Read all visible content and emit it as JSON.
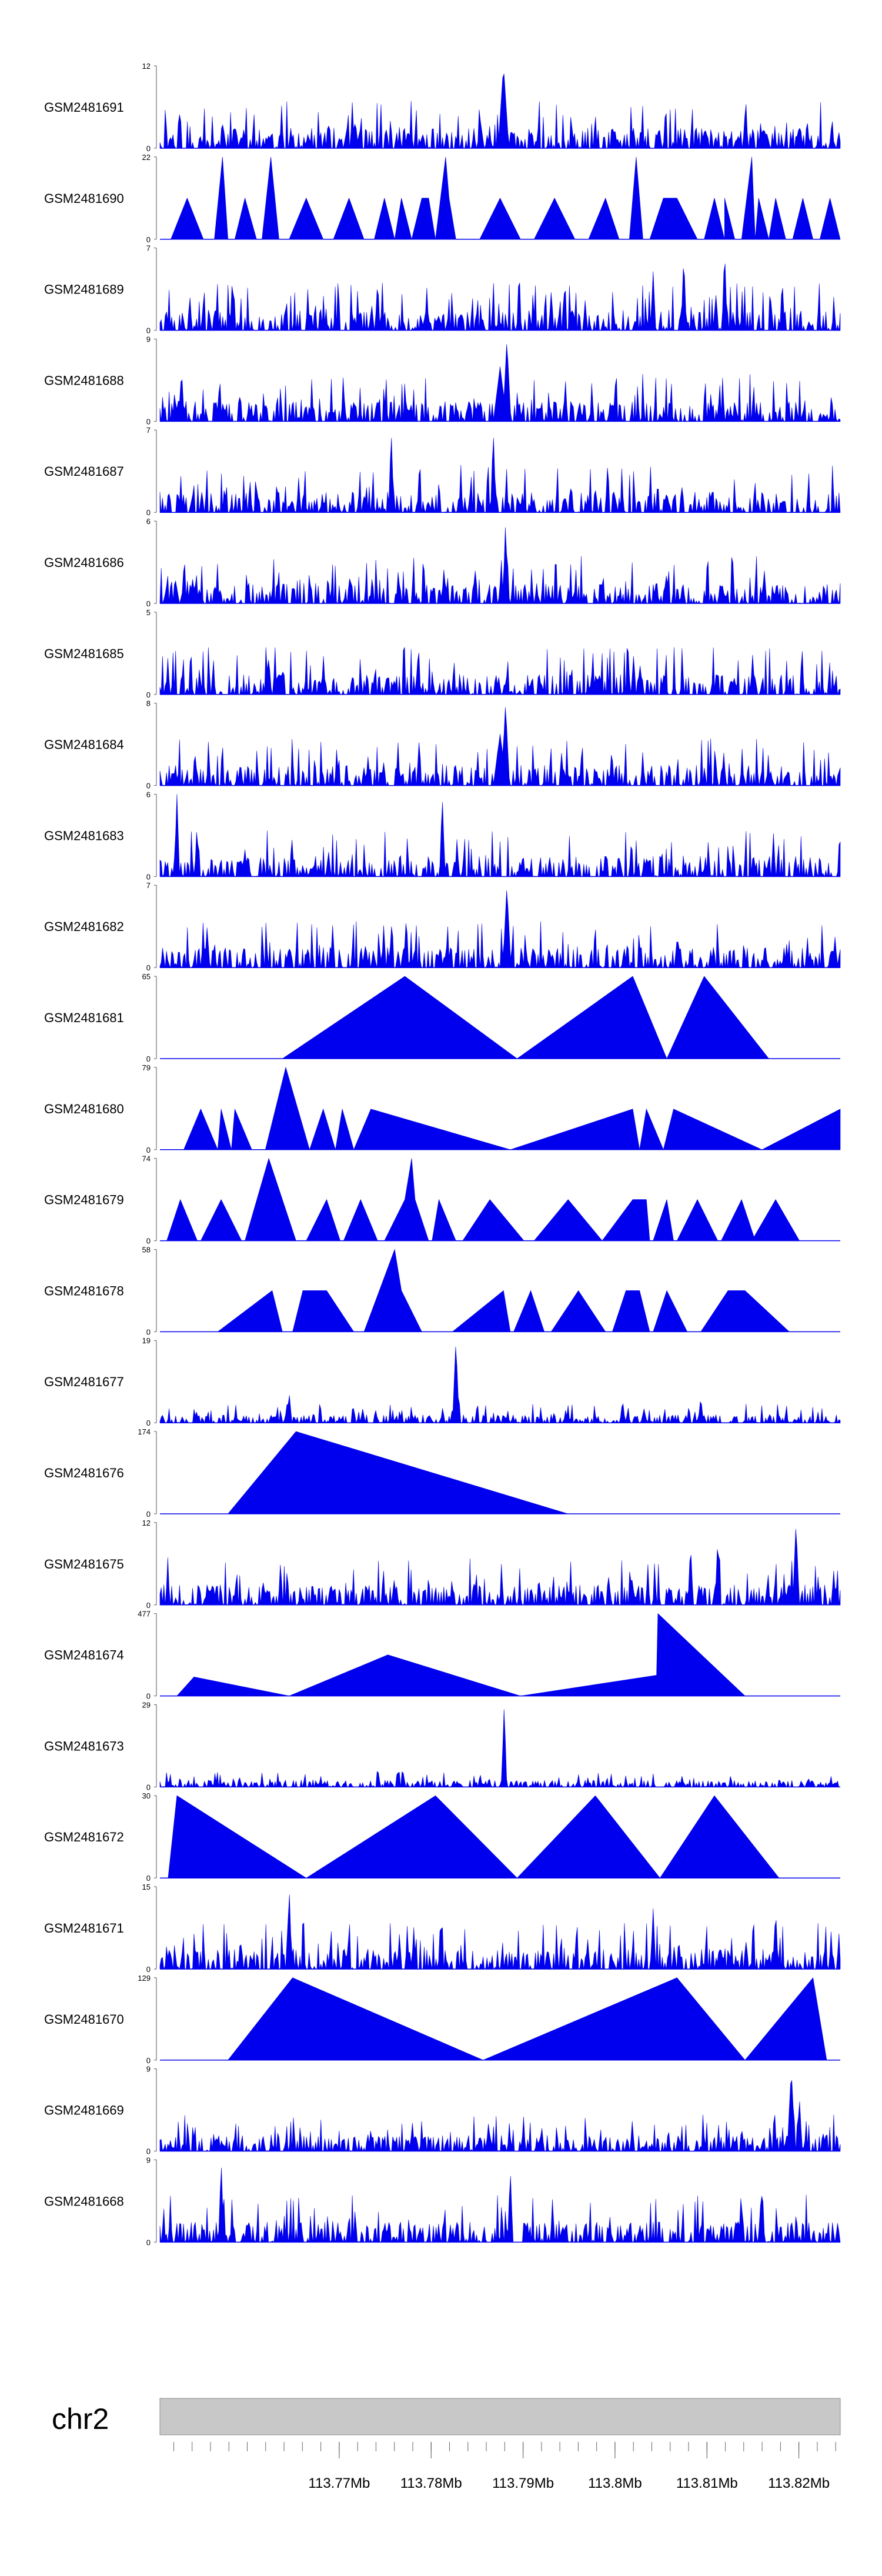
{
  "chart_data": {
    "type": "area",
    "title": "",
    "fill_color": "#0000EE",
    "chromosome": "chr2",
    "x_range_mb": [
      113.7505,
      113.8245
    ],
    "position_ticks": [
      "113.77Mb",
      "113.78Mb",
      "113.79Mb",
      "113.8Mb",
      "113.81Mb",
      "113.82Mb"
    ],
    "position_tick_values_mb": [
      113.77,
      113.78,
      113.79,
      113.8,
      113.81,
      113.82
    ],
    "ideogram_color": "#C8C8C8",
    "tracks": [
      {
        "name": "GSM2481691",
        "ymax": "12",
        "ymin": "0",
        "style": "dense",
        "max": 12,
        "peaks": [
          [
            0.505,
            12,
            0.008
          ]
        ],
        "seed": 11
      },
      {
        "name": "GSM2481690",
        "ymax": "22",
        "ymin": "0",
        "style": "tri",
        "max": 22,
        "points": [
          [
            0.0,
            0
          ],
          [
            0.016,
            0
          ],
          [
            0.04,
            11
          ],
          [
            0.064,
            0
          ],
          [
            0.08,
            0
          ],
          [
            0.092,
            22
          ],
          [
            0.1,
            0
          ],
          [
            0.11,
            0
          ],
          [
            0.125,
            11
          ],
          [
            0.142,
            0
          ],
          [
            0.15,
            0
          ],
          [
            0.163,
            22
          ],
          [
            0.175,
            0
          ],
          [
            0.19,
            0
          ],
          [
            0.215,
            11
          ],
          [
            0.24,
            0
          ],
          [
            0.255,
            0
          ],
          [
            0.278,
            11
          ],
          [
            0.3,
            0
          ],
          [
            0.315,
            0
          ],
          [
            0.33,
            11
          ],
          [
            0.345,
            0
          ],
          [
            0.355,
            11
          ],
          [
            0.37,
            0
          ],
          [
            0.385,
            11
          ],
          [
            0.395,
            11
          ],
          [
            0.405,
            0
          ],
          [
            0.42,
            22
          ],
          [
            0.425,
            11
          ],
          [
            0.435,
            0
          ],
          [
            0.47,
            0
          ],
          [
            0.5,
            11
          ],
          [
            0.53,
            0
          ],
          [
            0.55,
            0
          ],
          [
            0.58,
            11
          ],
          [
            0.61,
            0
          ],
          [
            0.63,
            0
          ],
          [
            0.655,
            11
          ],
          [
            0.675,
            0
          ],
          [
            0.69,
            0
          ],
          [
            0.7,
            22
          ],
          [
            0.71,
            0
          ],
          [
            0.72,
            0
          ],
          [
            0.74,
            11
          ],
          [
            0.76,
            11
          ],
          [
            0.79,
            0
          ],
          [
            0.8,
            0
          ],
          [
            0.815,
            11
          ],
          [
            0.83,
            0
          ],
          [
            0.83,
            11
          ],
          [
            0.845,
            0
          ],
          [
            0.855,
            0
          ],
          [
            0.87,
            22
          ],
          [
            0.875,
            0
          ],
          [
            0.88,
            11
          ],
          [
            0.895,
            0
          ],
          [
            0.905,
            11
          ],
          [
            0.92,
            0
          ],
          [
            0.93,
            0
          ],
          [
            0.945,
            11
          ],
          [
            0.96,
            0
          ],
          [
            0.97,
            0
          ],
          [
            0.985,
            11
          ],
          [
            1.0,
            0
          ]
        ]
      },
      {
        "name": "GSM2481689",
        "ymax": "7",
        "ymin": "0",
        "style": "dense",
        "max": 7,
        "peaks": [
          [
            0.77,
            6.5,
            0.004
          ],
          [
            0.83,
            7,
            0.004
          ],
          [
            0.725,
            5,
            0.004
          ]
        ],
        "seed": 23
      },
      {
        "name": "GSM2481688",
        "ymax": "9",
        "ymin": "0",
        "style": "dense",
        "max": 9,
        "peaks": [
          [
            0.51,
            9,
            0.006
          ],
          [
            0.5,
            6,
            0.01
          ]
        ],
        "seed": 37
      },
      {
        "name": "GSM2481687",
        "ymax": "7",
        "ymin": "0",
        "style": "dense",
        "max": 7,
        "peaks": [
          [
            0.34,
            7,
            0.004
          ],
          [
            0.49,
            7,
            0.004
          ]
        ],
        "seed": 41
      },
      {
        "name": "GSM2481686",
        "ymax": "6",
        "ymin": "0",
        "style": "dense",
        "max": 6,
        "peaks": [
          [
            0.508,
            6,
            0.004
          ]
        ],
        "seed": 53
      },
      {
        "name": "GSM2481685",
        "ymax": "5",
        "ymin": "0",
        "style": "dense",
        "max": 5,
        "peaks": [],
        "seed": 67
      },
      {
        "name": "GSM2481684",
        "ymax": "8",
        "ymin": "0",
        "style": "dense",
        "max": 8,
        "peaks": [
          [
            0.508,
            8,
            0.006
          ],
          [
            0.5,
            5,
            0.01
          ]
        ],
        "seed": 71
      },
      {
        "name": "GSM2481683",
        "ymax": "6",
        "ymin": "0",
        "style": "dense",
        "max": 6,
        "peaks": [
          [
            0.025,
            6,
            0.004
          ],
          [
            0.415,
            6,
            0.004
          ]
        ],
        "seed": 83
      },
      {
        "name": "GSM2481682",
        "ymax": "7",
        "ymin": "0",
        "style": "dense",
        "max": 7,
        "peaks": [
          [
            0.51,
            7,
            0.006
          ]
        ],
        "seed": 97
      },
      {
        "name": "GSM2481681",
        "ymax": "65",
        "ymin": "0",
        "style": "tri",
        "max": 65,
        "points": [
          [
            0.0,
            0
          ],
          [
            0.18,
            0
          ],
          [
            0.36,
            65
          ],
          [
            0.525,
            0
          ],
          [
            0.695,
            65
          ],
          [
            0.745,
            0
          ],
          [
            0.8,
            65
          ],
          [
            0.895,
            0
          ],
          [
            1.0,
            0
          ]
        ]
      },
      {
        "name": "GSM2481680",
        "ymax": "79",
        "ymin": "0",
        "style": "tri",
        "max": 79,
        "points": [
          [
            0.0,
            0
          ],
          [
            0.035,
            0
          ],
          [
            0.06,
            39
          ],
          [
            0.085,
            0
          ],
          [
            0.09,
            39
          ],
          [
            0.105,
            0
          ],
          [
            0.11,
            39
          ],
          [
            0.135,
            0
          ],
          [
            0.155,
            0
          ],
          [
            0.185,
            79
          ],
          [
            0.22,
            0
          ],
          [
            0.24,
            39
          ],
          [
            0.258,
            0
          ],
          [
            0.268,
            39
          ],
          [
            0.285,
            0
          ],
          [
            0.31,
            39
          ],
          [
            0.515,
            0
          ],
          [
            0.695,
            39
          ],
          [
            0.705,
            0
          ],
          [
            0.715,
            39
          ],
          [
            0.74,
            0
          ],
          [
            0.755,
            39
          ],
          [
            0.885,
            0
          ],
          [
            1.0,
            39
          ],
          [
            1.0,
            0
          ]
        ]
      },
      {
        "name": "GSM2481679",
        "ymax": "74",
        "ymin": "0",
        "style": "tri",
        "max": 74,
        "points": [
          [
            0.0,
            0
          ],
          [
            0.01,
            0
          ],
          [
            0.03,
            37
          ],
          [
            0.055,
            0
          ],
          [
            0.06,
            0
          ],
          [
            0.09,
            37
          ],
          [
            0.12,
            0
          ],
          [
            0.125,
            0
          ],
          [
            0.16,
            74
          ],
          [
            0.2,
            0
          ],
          [
            0.215,
            0
          ],
          [
            0.245,
            37
          ],
          [
            0.265,
            0
          ],
          [
            0.27,
            0
          ],
          [
            0.295,
            37
          ],
          [
            0.32,
            0
          ],
          [
            0.33,
            0
          ],
          [
            0.36,
            37
          ],
          [
            0.37,
            74
          ],
          [
            0.375,
            37
          ],
          [
            0.395,
            0
          ],
          [
            0.4,
            0
          ],
          [
            0.41,
            37
          ],
          [
            0.435,
            0
          ],
          [
            0.445,
            0
          ],
          [
            0.485,
            37
          ],
          [
            0.535,
            0
          ],
          [
            0.55,
            0
          ],
          [
            0.6,
            37
          ],
          [
            0.65,
            0
          ],
          [
            0.65,
            0
          ],
          [
            0.695,
            37
          ],
          [
            0.715,
            37
          ],
          [
            0.72,
            0
          ],
          [
            0.725,
            0
          ],
          [
            0.745,
            37
          ],
          [
            0.755,
            0
          ],
          [
            0.76,
            0
          ],
          [
            0.79,
            37
          ],
          [
            0.82,
            0
          ],
          [
            0.825,
            0
          ],
          [
            0.855,
            37
          ],
          [
            0.875,
            0
          ],
          [
            0.87,
            0
          ],
          [
            0.905,
            37
          ],
          [
            0.94,
            0
          ],
          [
            1.0,
            0
          ]
        ]
      },
      {
        "name": "GSM2481678",
        "ymax": "58",
        "ymin": "0",
        "style": "tri",
        "max": 58,
        "points": [
          [
            0.0,
            0
          ],
          [
            0.085,
            0
          ],
          [
            0.165,
            29
          ],
          [
            0.18,
            0
          ],
          [
            0.195,
            0
          ],
          [
            0.21,
            29
          ],
          [
            0.245,
            29
          ],
          [
            0.285,
            0
          ],
          [
            0.3,
            0
          ],
          [
            0.345,
            58
          ],
          [
            0.355,
            29
          ],
          [
            0.385,
            0
          ],
          [
            0.43,
            0
          ],
          [
            0.505,
            29
          ],
          [
            0.515,
            0
          ],
          [
            0.52,
            0
          ],
          [
            0.545,
            29
          ],
          [
            0.565,
            0
          ],
          [
            0.575,
            0
          ],
          [
            0.615,
            29
          ],
          [
            0.655,
            0
          ],
          [
            0.665,
            0
          ],
          [
            0.685,
            29
          ],
          [
            0.705,
            29
          ],
          [
            0.72,
            0
          ],
          [
            0.725,
            0
          ],
          [
            0.745,
            29
          ],
          [
            0.775,
            0
          ],
          [
            0.795,
            0
          ],
          [
            0.835,
            29
          ],
          [
            0.86,
            29
          ],
          [
            0.925,
            0
          ],
          [
            1.0,
            0
          ]
        ]
      },
      {
        "name": "GSM2481677",
        "ymax": "19",
        "ymin": "0",
        "style": "dense",
        "max": 19,
        "peaks": [
          [
            0.435,
            19,
            0.005
          ],
          [
            0.19,
            7,
            0.004
          ],
          [
            0.795,
            6,
            0.004
          ]
        ],
        "seed": 109,
        "base_scale": 0.18
      },
      {
        "name": "GSM2481676",
        "ymax": "174",
        "ymin": "0",
        "style": "tri",
        "max": 174,
        "points": [
          [
            0.0,
            0
          ],
          [
            0.1,
            0
          ],
          [
            0.2,
            174
          ],
          [
            0.6,
            0
          ],
          [
            1.0,
            0
          ]
        ]
      },
      {
        "name": "GSM2481675",
        "ymax": "12",
        "ymin": "0",
        "style": "dense",
        "max": 12,
        "peaks": [
          [
            0.935,
            12,
            0.005
          ],
          [
            0.78,
            9,
            0.004
          ],
          [
            0.82,
            10,
            0.004
          ]
        ],
        "seed": 113
      },
      {
        "name": "GSM2481674",
        "ymax": "477",
        "ymin": "0",
        "style": "tri",
        "max": 477,
        "points": [
          [
            0.0,
            0
          ],
          [
            0.025,
            0
          ],
          [
            0.05,
            110
          ],
          [
            0.19,
            0
          ],
          [
            0.335,
            238
          ],
          [
            0.53,
            0
          ],
          [
            0.73,
            120
          ],
          [
            0.732,
            477
          ],
          [
            0.86,
            0
          ],
          [
            1.0,
            0
          ]
        ]
      },
      {
        "name": "GSM2481673",
        "ymax": "29",
        "ymin": "0",
        "style": "dense",
        "max": 29,
        "peaks": [
          [
            0.506,
            29,
            0.004
          ]
        ],
        "seed": 127,
        "base_scale": 0.15
      },
      {
        "name": "GSM2481672",
        "ymax": "30",
        "ymin": "0",
        "style": "tri",
        "max": 30,
        "points": [
          [
            0.0,
            0
          ],
          [
            0.012,
            0
          ],
          [
            0.025,
            30
          ],
          [
            0.215,
            0
          ],
          [
            0.405,
            30
          ],
          [
            0.525,
            0
          ],
          [
            0.64,
            30
          ],
          [
            0.735,
            0
          ],
          [
            0.815,
            30
          ],
          [
            0.91,
            0
          ],
          [
            1.0,
            0
          ]
        ]
      },
      {
        "name": "GSM2481671",
        "ymax": "15",
        "ymin": "0",
        "style": "dense",
        "max": 15,
        "peaks": [
          [
            0.19,
            15,
            0.004
          ],
          [
            0.905,
            11,
            0.004
          ],
          [
            0.725,
            11,
            0.004
          ]
        ],
        "seed": 131
      },
      {
        "name": "GSM2481670",
        "ymax": "129",
        "ymin": "0",
        "style": "tri",
        "max": 129,
        "points": [
          [
            0.0,
            0
          ],
          [
            0.1,
            0
          ],
          [
            0.195,
            129
          ],
          [
            0.475,
            0
          ],
          [
            0.76,
            129
          ],
          [
            0.86,
            0
          ],
          [
            0.96,
            129
          ],
          [
            0.98,
            0
          ],
          [
            1.0,
            0
          ]
        ]
      },
      {
        "name": "GSM2481669",
        "ymax": "9",
        "ymin": "0",
        "style": "dense",
        "max": 9,
        "peaks": [
          [
            0.928,
            9,
            0.006
          ],
          [
            0.94,
            6,
            0.004
          ]
        ],
        "seed": 137,
        "base_scale": 0.35
      },
      {
        "name": "GSM2481668",
        "ymax": "9",
        "ymin": "0",
        "style": "dense",
        "max": 9,
        "peaks": [
          [
            0.09,
            9,
            0.004
          ],
          [
            0.515,
            8,
            0.004
          ]
        ],
        "seed": 149
      }
    ]
  }
}
